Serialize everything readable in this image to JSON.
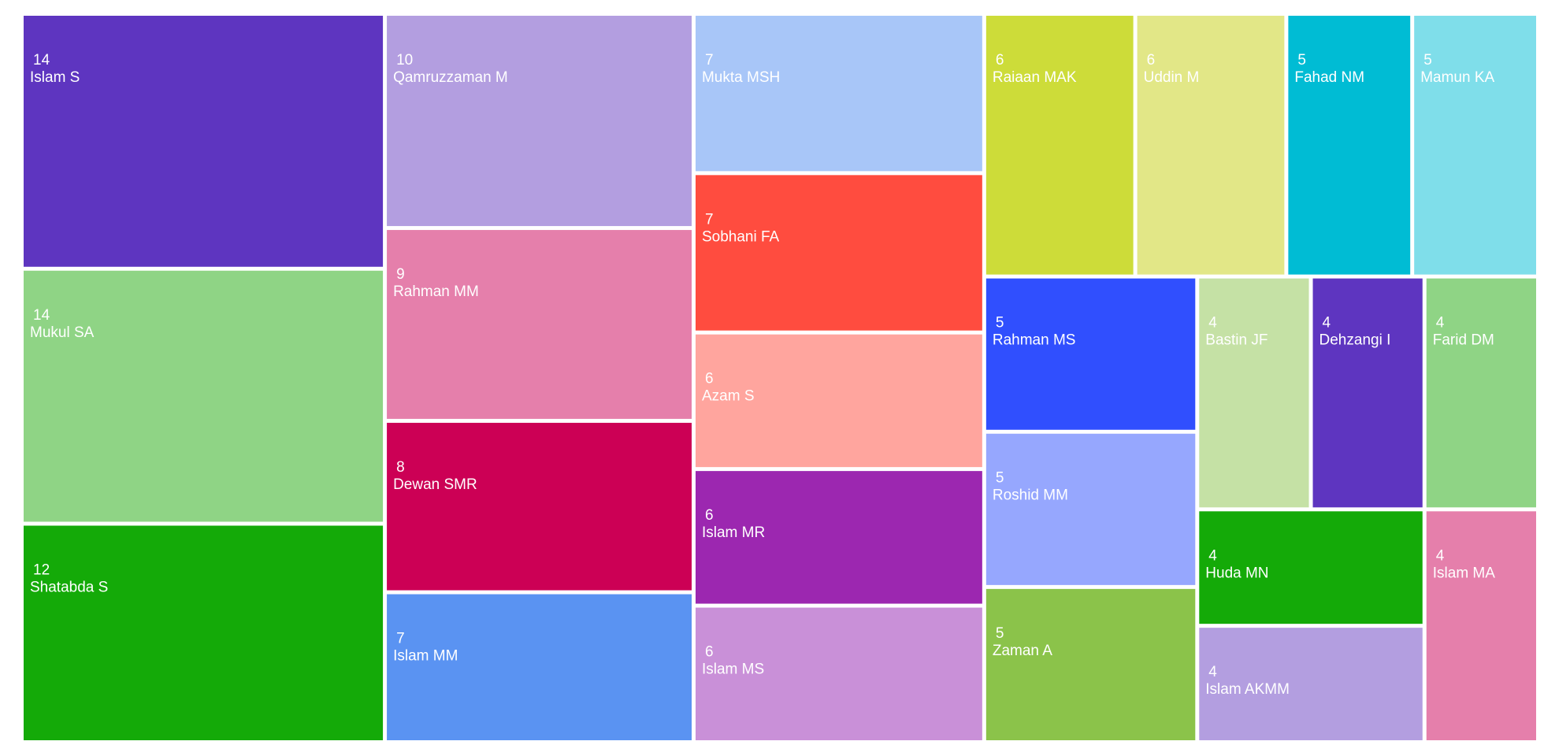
{
  "chart_data": {
    "type": "treemap",
    "categories": [
      "Islam S",
      "Mukul SA",
      "Shatabda S",
      "Qamruzzaman M",
      "Rahman MM",
      "Dewan SMR",
      "Islam MM",
      "Mukta MSH",
      "Sobhani FA",
      "Azam S",
      "Islam MR",
      "Islam MS",
      "Raiaan MAK",
      "Uddin M",
      "Fahad NM",
      "Mamun KA",
      "Rahman MS",
      "Roshid MM",
      "Zaman A",
      "Bastin JF",
      "Dehzangi I",
      "Farid DM",
      "Huda MN",
      "Islam AKMM",
      "Islam MA"
    ],
    "values": [
      14,
      14,
      12,
      10,
      9,
      8,
      7,
      7,
      7,
      6,
      6,
      6,
      6,
      6,
      5,
      5,
      5,
      5,
      5,
      4,
      4,
      4,
      4,
      4,
      4
    ],
    "colors": [
      "#5e35c0",
      "#8fd485",
      "#14aa08",
      "#b39ee0",
      "#e57fab",
      "#cc0055",
      "#5a93f2",
      "#a8c6f8",
      "#ff4c3f",
      "#ffa59e",
      "#9c27b0",
      "#c990d8",
      "#cddc39",
      "#e2e787",
      "#00bcd4",
      "#7fdeea",
      "#304ffe",
      "#96a7fe",
      "#8bc34a",
      "#c5e1a5",
      "#5e35c0",
      "#8fd485",
      "#14aa08",
      "#b39ee0",
      "#e57fab"
    ]
  }
}
